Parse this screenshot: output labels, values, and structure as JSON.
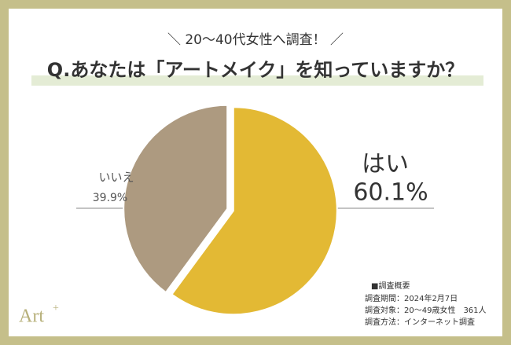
{
  "chart_data": {
    "type": "pie",
    "subtitle": "＼ 20〜40代女性へ調査！ ／",
    "title": "Q.あなたは「アートメイク」を知っていますか？",
    "categories": [
      "はい",
      "いいえ"
    ],
    "values": [
      60.1,
      39.9
    ],
    "value_labels": [
      "60.1%",
      "39.9%"
    ],
    "colors": [
      "#e3b934",
      "#ad9a80"
    ]
  },
  "survey_notes": {
    "heading": "■調査概要",
    "lines": [
      "調査期間：2024年2月7日",
      "調査対象：20〜49歳女性　361人",
      "調査方法：インターネット調査"
    ]
  },
  "logo": {
    "main": "Art",
    "sup": "+"
  }
}
